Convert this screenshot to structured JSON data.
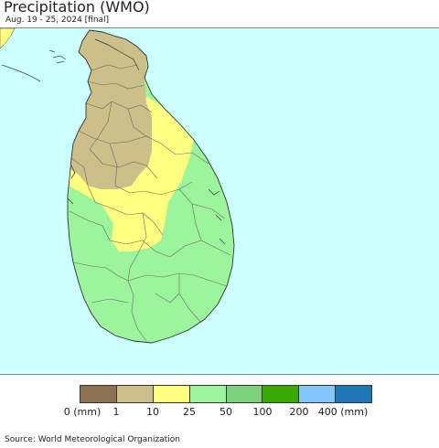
{
  "header": {
    "title": "Precipitation (WMO)",
    "subtitle": "Aug. 19 - 25, 2024 [final]"
  },
  "map": {
    "region": "Sri Lanka",
    "ocean_color": "#ccffff",
    "land_outside_color": "#ffff80"
  },
  "legend": {
    "colors": [
      "#8b7150",
      "#cdbf8a",
      "#ffff80",
      "#9cf59c",
      "#7dd07d",
      "#39a800",
      "#84c7ff",
      "#1f77b4"
    ],
    "labels": [
      "0 (mm)",
      "1",
      "10",
      "25",
      "50",
      "100",
      "200",
      "400 (mm)"
    ]
  },
  "footer": {
    "source": "Source: World Meteorological Organization"
  }
}
